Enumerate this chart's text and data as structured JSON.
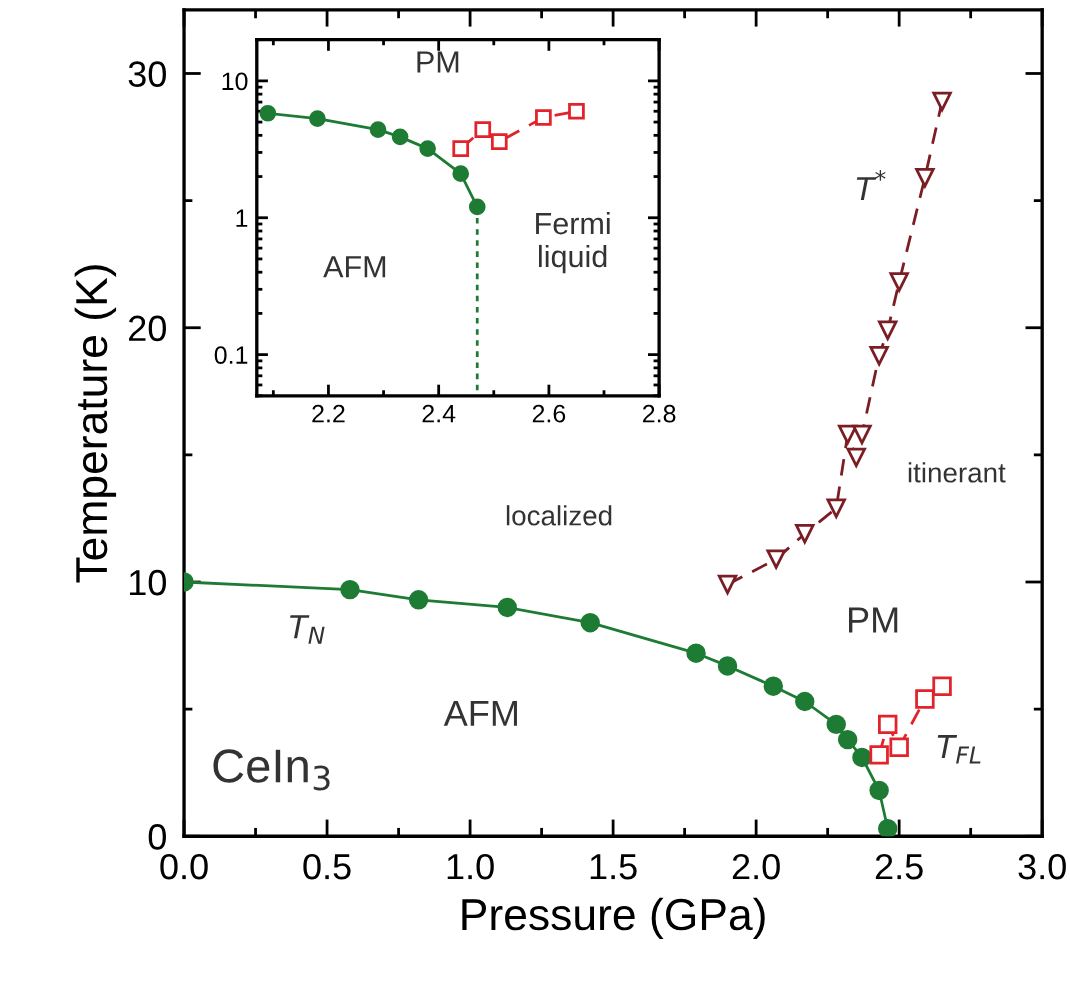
{
  "chart_data": [
    {
      "type": "line",
      "xlabel": "Pressure (GPa)",
      "ylabel": "Temperature (K)",
      "xlim": [
        0,
        3.0
      ],
      "ylim": [
        0,
        32.5
      ],
      "xticks": [
        {
          "value": 0,
          "label": "0.0"
        },
        0.5,
        {
          "value": 1.0,
          "label": "1.0"
        },
        1.5,
        {
          "value": 2.0,
          "label": "2.0"
        },
        2.5,
        {
          "value": 3.0,
          "label": "3.0"
        }
      ],
      "yticks": [
        0,
        10,
        20,
        30
      ],
      "grid": false,
      "series": [
        {
          "name": "T$_{N}$",
          "color": "#1e7b34",
          "marker": "circle",
          "line_style": "solid",
          "x": [
            0.0,
            0.58,
            0.82,
            1.13,
            1.42,
            1.79,
            1.9,
            2.06,
            2.17,
            2.28,
            2.32,
            2.37,
            2.43,
            2.46
          ],
          "values": [
            10.0,
            9.7,
            9.3,
            9.0,
            8.4,
            7.2,
            6.7,
            5.9,
            5.3,
            4.4,
            3.8,
            3.1,
            1.8,
            0.3
          ]
        },
        {
          "name": "T$_{FL}$",
          "color": "#e2232b",
          "marker": "square",
          "line_style": "dashed",
          "x": [
            2.43,
            2.46,
            2.5,
            2.59,
            2.65
          ],
          "values": [
            3.2,
            4.4,
            3.5,
            5.4,
            5.9
          ]
        },
        {
          "name": "T$^{*}$",
          "color": "#7a1d24",
          "marker": "triangle",
          "line_style": "dashed",
          "x": [
            1.9,
            2.07,
            2.17,
            2.28,
            2.32,
            2.35,
            2.37,
            2.43,
            2.46,
            2.5,
            2.59,
            2.65
          ],
          "values": [
            9.9,
            10.9,
            11.9,
            12.9,
            15.8,
            14.9,
            15.8,
            18.9,
            19.9,
            21.8,
            25.9,
            28.9
          ]
        }
      ],
      "annotations": [
        "localized",
        "itinerant",
        "PM",
        "AFM",
        "CeIn$_{3}$"
      ]
    },
    {
      "type": "line",
      "log": "y",
      "xlim": [
        2.07,
        2.8
      ],
      "ylim": [
        0.05,
        20
      ],
      "xticks": [
        2.2,
        2.4,
        2.6,
        2.8
      ],
      "yticks": [
        0.1,
        1,
        10
      ],
      "grid": false,
      "series": [
        {
          "color": "#1e7b34",
          "marker": "circle",
          "line_style": "solid",
          "x": [
            2.09,
            2.18,
            2.29,
            2.33,
            2.38,
            2.44,
            2.47
          ],
          "values": [
            5.8,
            5.3,
            4.4,
            3.9,
            3.2,
            2.1,
            1.2
          ]
        },
        {
          "color": "#1e7b34",
          "marker": "none",
          "line_style": "dotted",
          "x": [
            2.47,
            2.47
          ],
          "values": [
            1.2,
            0.05
          ]
        },
        {
          "color": "#e2232b",
          "marker": "square",
          "line_style": "dashed",
          "x": [
            2.44,
            2.48,
            2.51,
            2.59,
            2.65
          ],
          "values": [
            3.2,
            4.4,
            3.6,
            5.4,
            6.0
          ]
        }
      ],
      "annotations": [
        "PM",
        "AFM",
        "Fermi\nliquid"
      ]
    }
  ]
}
